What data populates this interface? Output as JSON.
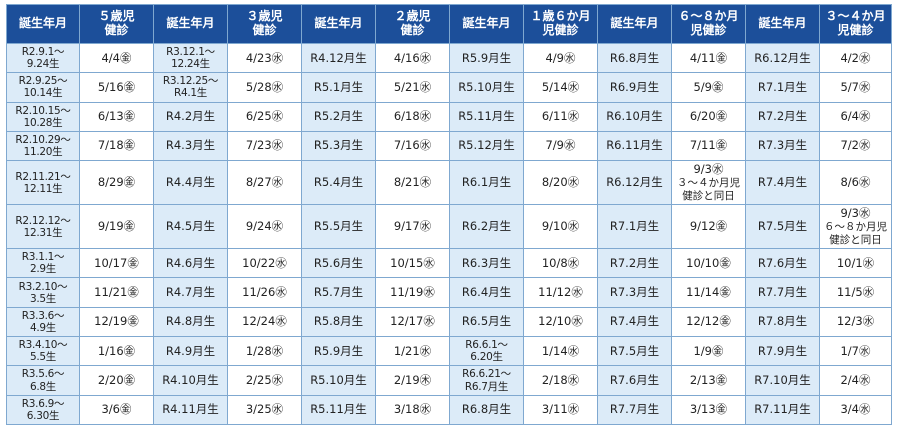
{
  "headers": [
    "誕生年月",
    "５歳児\n健診",
    "誕生年月",
    "３歳児\n健診",
    "誕生年月",
    "２歳児\n健診",
    "誕生年月",
    "１歳６か月\n児健診",
    "誕生年月",
    "６～８か月\n児健診",
    "誕生年月",
    "３～４か月\n児健診"
  ],
  "rows": [
    [
      "R2.9.1～\n9.24生",
      "4/4㊎",
      "R3.12.1～\n12.24生",
      "4/23㊌",
      "R4.12月生",
      "4/16㊌",
      "R5.9月生",
      "4/9㊌",
      "R6.8月生",
      "4/11㊎",
      "R6.12月生",
      "4/2㊌"
    ],
    [
      "R2.9.25～\n10.14生",
      "5/16㊎",
      "R3.12.25～\nR4.1生",
      "5/28㊌",
      "R5.1月生",
      "5/21㊌",
      "R5.10月生",
      "5/14㊌",
      "R6.9月生",
      "5/9㊎",
      "R7.1月生",
      "5/7㊌"
    ],
    [
      "R2.10.15～\n10.28生",
      "6/13㊎",
      "R4.2月生",
      "6/25㊌",
      "R5.2月生",
      "6/18㊌",
      "R5.11月生",
      "6/11㊌",
      "R6.10月生",
      "6/20㊎",
      "R7.2月生",
      "6/4㊌"
    ],
    [
      "R2.10.29～\n11.20生",
      "7/18㊎",
      "R4.3月生",
      "7/23㊌",
      "R5.3月生",
      "7/16㊌",
      "R5.12月生",
      "7/9㊌",
      "R6.11月生",
      "7/11㊎",
      "R7.3月生",
      "7/2㊌"
    ],
    [
      "R2.11.21～\n12.11生",
      "8/29㊎",
      "R4.4月生",
      "8/27㊌",
      "R5.4月生",
      "8/21㊍",
      "R6.1月生",
      "8/20㊌",
      "R6.12月生",
      "9/3㊌\n３～４か月児\n健診と同日",
      "R7.4月生",
      "8/6㊌"
    ],
    [
      "R2.12.12～\n12.31生",
      "9/19㊎",
      "R4.5月生",
      "9/24㊌",
      "R5.5月生",
      "9/17㊌",
      "R6.2月生",
      "9/10㊌",
      "R7.1月生",
      "9/12㊎",
      "R7.5月生",
      "9/3㊌\n６～８か月児\n健診と同日"
    ],
    [
      "R3.1.1～\n2.9生",
      "10/17㊎",
      "R4.6月生",
      "10/22㊌",
      "R5.6月生",
      "10/15㊌",
      "R6.3月生",
      "10/8㊌",
      "R7.2月生",
      "10/10㊎",
      "R7.6月生",
      "10/1㊌"
    ],
    [
      "R3.2.10～\n3.5生",
      "11/21㊎",
      "R4.7月生",
      "11/26㊌",
      "R5.7月生",
      "11/19㊌",
      "R6.4月生",
      "11/12㊌",
      "R7.3月生",
      "11/14㊎",
      "R7.7月生",
      "11/5㊌"
    ],
    [
      "R3.3.6～\n4.9生",
      "12/19㊎",
      "R4.8月生",
      "12/24㊌",
      "R5.8月生",
      "12/17㊌",
      "R6.5月生",
      "12/10㊌",
      "R7.4月生",
      "12/12㊎",
      "R7.8月生",
      "12/3㊌"
    ],
    [
      "R3.4.10～\n5.5生",
      "1/16㊎",
      "R4.9月生",
      "1/28㊌",
      "R5.9月生",
      "1/21㊌",
      "R6.6.1～\n6.20生",
      "1/14㊌",
      "R7.5月生",
      "1/9㊎",
      "R7.9月生",
      "1/7㊌"
    ],
    [
      "R3.5.6～\n6.8生",
      "2/20㊎",
      "R4.10月生",
      "2/25㊌",
      "R5.10月生",
      "2/19㊍",
      "R6.6.21～\nR6.7月生",
      "2/18㊌",
      "R7.6月生",
      "2/13㊎",
      "R7.10月生",
      "2/4㊌"
    ],
    [
      "R3.6.9～\n6.30生",
      "3/6㊎",
      "R4.11月生",
      "3/25㊌",
      "R5.11月生",
      "3/18㊌",
      "R6.8月生",
      "3/11㊌",
      "R7.7月生",
      "3/13㊎",
      "R7.11月生",
      "3/4㊌"
    ]
  ],
  "colors": {
    "header_bg": "#1c4f9a",
    "birth_bg": "#dcebf8",
    "border": "#7fa8d0"
  }
}
